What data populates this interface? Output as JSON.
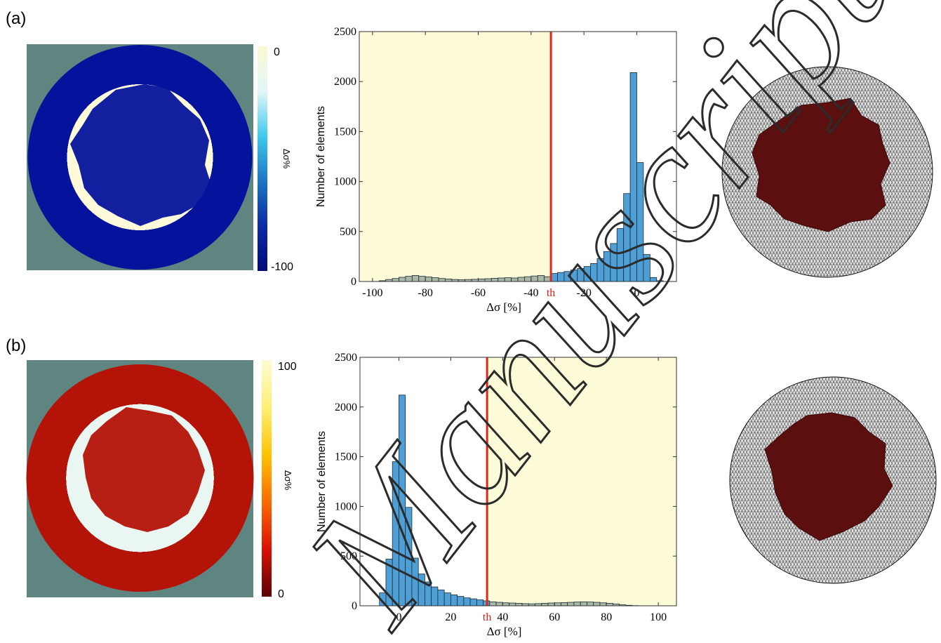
{
  "panels": [
    {
      "label": "(a)",
      "colorbar": {
        "max_label": "0",
        "min_label": "-100",
        "label": "Δσ%",
        "stops": [
          "#fbf8d2",
          "#e2f7f7",
          "#3fc9ee",
          "#1a76c4",
          "#0b2ba6",
          "#010a7c"
        ]
      },
      "map_background": "#5e8580",
      "map_inner_colors": [
        "#fdfbd9",
        "#d5f3f7",
        "#5cc7ea",
        "#1e6fcc",
        "#05139c"
      ],
      "mesh_fill": "#5c0f0f",
      "chart_data": {
        "type": "bar",
        "xlabel": "Δσ [%]",
        "ylabel": "Number of elements",
        "xlim": [
          -105,
          15
        ],
        "ylim": [
          0,
          2500
        ],
        "xticks": [
          -100,
          -80,
          -60,
          -40,
          -20,
          0
        ],
        "xtick_labels": [
          "-100",
          "-80",
          "-60",
          "-40",
          "-20",
          "0"
        ],
        "yticks": [
          0,
          500,
          1000,
          1500,
          2000,
          2500
        ],
        "ytick_labels": [
          "0",
          "500",
          "1000",
          "1500",
          "2000",
          "2500"
        ],
        "bin_width": 2.5,
        "bin_starts": [
          -97.5,
          -95,
          -92.5,
          -90,
          -87.5,
          -85,
          -82.5,
          -80,
          -77.5,
          -75,
          -72.5,
          -70,
          -67.5,
          -65,
          -62.5,
          -60,
          -57.5,
          -55,
          -52.5,
          -50,
          -47.5,
          -45,
          -42.5,
          -40,
          -37.5,
          -35,
          -32.5,
          -30,
          -27.5,
          -25,
          -22.5,
          -20,
          -17.5,
          -15,
          -12.5,
          -10,
          -7.5,
          -5,
          -2.5,
          0,
          2.5,
          5,
          7.5
        ],
        "values": [
          8,
          20,
          30,
          42,
          52,
          60,
          52,
          45,
          38,
          30,
          25,
          20,
          18,
          20,
          22,
          25,
          28,
          32,
          35,
          38,
          35,
          42,
          48,
          55,
          60,
          48,
          80,
          90,
          100,
          115,
          130,
          150,
          180,
          230,
          300,
          380,
          530,
          880,
          2090,
          1190,
          270,
          40,
          8
        ],
        "threshold": -32.5,
        "threshold_label": "th",
        "highlight_range": [
          -105,
          -32.5
        ],
        "highlight_color": "#fdfbd8",
        "bar_color_inside": "#4d9fd6",
        "bar_color_outside": "#a8b8a5"
      }
    },
    {
      "label": "(b)",
      "colorbar": {
        "max_label": "100",
        "min_label": "0",
        "label": "Δσ%",
        "stops": [
          "#fffbd2",
          "#ffef74",
          "#ffc304",
          "#fb6a04",
          "#d91006",
          "#5a0303"
        ]
      },
      "map_background": "#5e8580",
      "map_inner_colors": [
        "#eaf6f2",
        "#fff9b7",
        "#ffd81a",
        "#f27808",
        "#b41307"
      ],
      "mesh_fill": "#5c0f0f",
      "chart_data": {
        "type": "bar",
        "xlabel": "Δσ [%]",
        "ylabel": "Number of elements",
        "xlim": [
          -15,
          107
        ],
        "ylim": [
          0,
          2500
        ],
        "xticks": [
          0,
          20,
          40,
          60,
          80,
          100
        ],
        "xtick_labels": [
          "0",
          "20",
          "40",
          "60",
          "80",
          "100"
        ],
        "yticks": [
          0,
          500,
          1000,
          1500,
          2000,
          2500
        ],
        "ytick_labels": [
          "0",
          "500",
          "1000",
          "1500",
          "2000",
          "2500"
        ],
        "bin_width": 2.5,
        "bin_starts": [
          -7.5,
          -5,
          -2.5,
          0,
          2.5,
          5,
          7.5,
          10,
          12.5,
          15,
          17.5,
          20,
          22.5,
          25,
          27.5,
          30,
          32.5,
          35,
          37.5,
          40,
          42.5,
          45,
          47.5,
          50,
          52.5,
          55,
          57.5,
          60,
          62.5,
          65,
          67.5,
          70,
          72.5,
          75,
          77.5,
          80,
          82.5,
          85,
          87.5,
          90
        ],
        "values": [
          130,
          470,
          1450,
          2120,
          990,
          480,
          320,
          240,
          190,
          160,
          130,
          110,
          95,
          80,
          70,
          60,
          50,
          40,
          35,
          30,
          28,
          25,
          22,
          20,
          22,
          25,
          28,
          30,
          32,
          35,
          38,
          40,
          38,
          35,
          30,
          25,
          18,
          10,
          5,
          2
        ],
        "threshold": 34,
        "threshold_label": "th",
        "highlight_range": [
          34,
          107
        ],
        "highlight_color": "#fdfbd8",
        "bar_color_inside": "#4d9fd6",
        "bar_color_outside": "#a8b8a5"
      }
    }
  ]
}
